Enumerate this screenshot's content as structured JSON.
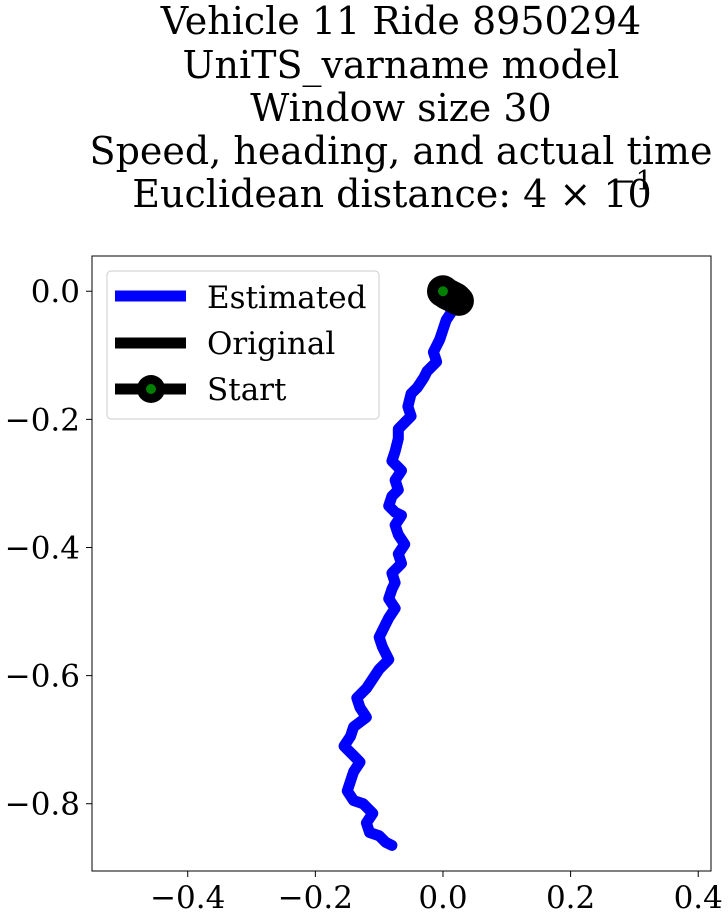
{
  "chart_data": {
    "type": "line",
    "title_lines": [
      "Vehicle 11 Ride 8950294",
      "UniTS_varname model",
      "Window size 30",
      "Speed, heading, and actual time",
      "Euclidean distance: 4 × 10"
    ],
    "title_exponent": "−1",
    "xlim": [
      -0.55,
      0.42
    ],
    "ylim": [
      -0.905,
      0.055
    ],
    "x_ticks": [
      -0.4,
      -0.2,
      0.0,
      0.2,
      0.4
    ],
    "x_tick_labels": [
      "−0.4",
      "−0.2",
      "0.0",
      "0.2",
      "0.4"
    ],
    "y_ticks": [
      0.0,
      -0.2,
      -0.4,
      -0.6,
      -0.8
    ],
    "y_tick_labels": [
      "0.0",
      "−0.2",
      "−0.4",
      "−0.6",
      "−0.8"
    ],
    "grid": false,
    "legend_position": "top-left",
    "series": [
      {
        "name": "Estimated",
        "color": "#0000ff",
        "x": [
          0.0,
          0.01,
          0.015,
          0.005,
          0.0,
          -0.005,
          -0.015,
          -0.01,
          -0.025,
          -0.03,
          -0.04,
          -0.05,
          -0.055,
          -0.05,
          -0.06,
          -0.07,
          -0.07,
          -0.075,
          -0.08,
          -0.065,
          -0.075,
          -0.07,
          -0.08,
          -0.085,
          -0.075,
          -0.065,
          -0.075,
          -0.07,
          -0.06,
          -0.07,
          -0.065,
          -0.08,
          -0.075,
          -0.08,
          -0.085,
          -0.075,
          -0.085,
          -0.09,
          -0.1,
          -0.095,
          -0.085,
          -0.1,
          -0.11,
          -0.12,
          -0.135,
          -0.13,
          -0.12,
          -0.14,
          -0.145,
          -0.155,
          -0.14,
          -0.13,
          -0.14,
          -0.145,
          -0.15,
          -0.14,
          -0.125,
          -0.11,
          -0.12,
          -0.115,
          -0.1,
          -0.09,
          -0.08
        ],
        "y": [
          0.0,
          -0.015,
          -0.03,
          -0.045,
          -0.06,
          -0.075,
          -0.095,
          -0.11,
          -0.125,
          -0.135,
          -0.15,
          -0.16,
          -0.18,
          -0.195,
          -0.205,
          -0.215,
          -0.23,
          -0.25,
          -0.265,
          -0.28,
          -0.295,
          -0.31,
          -0.32,
          -0.335,
          -0.345,
          -0.35,
          -0.365,
          -0.38,
          -0.395,
          -0.41,
          -0.425,
          -0.44,
          -0.455,
          -0.465,
          -0.48,
          -0.495,
          -0.51,
          -0.52,
          -0.54,
          -0.555,
          -0.575,
          -0.59,
          -0.605,
          -0.62,
          -0.635,
          -0.65,
          -0.665,
          -0.68,
          -0.695,
          -0.71,
          -0.725,
          -0.735,
          -0.75,
          -0.765,
          -0.78,
          -0.795,
          -0.8,
          -0.815,
          -0.83,
          -0.845,
          -0.85,
          -0.86,
          -0.865
        ]
      },
      {
        "name": "Original",
        "color": "#000000",
        "x": [
          0.0,
          0.01,
          0.02,
          0.025,
          0.015,
          0.005,
          0.0
        ],
        "y": [
          0.0,
          -0.005,
          -0.01,
          -0.015,
          -0.01,
          -0.005,
          0.0
        ]
      },
      {
        "name": "Start",
        "color": "#000000",
        "marker_color": "#008000",
        "x": [
          0.0
        ],
        "y": [
          0.0
        ]
      }
    ]
  }
}
